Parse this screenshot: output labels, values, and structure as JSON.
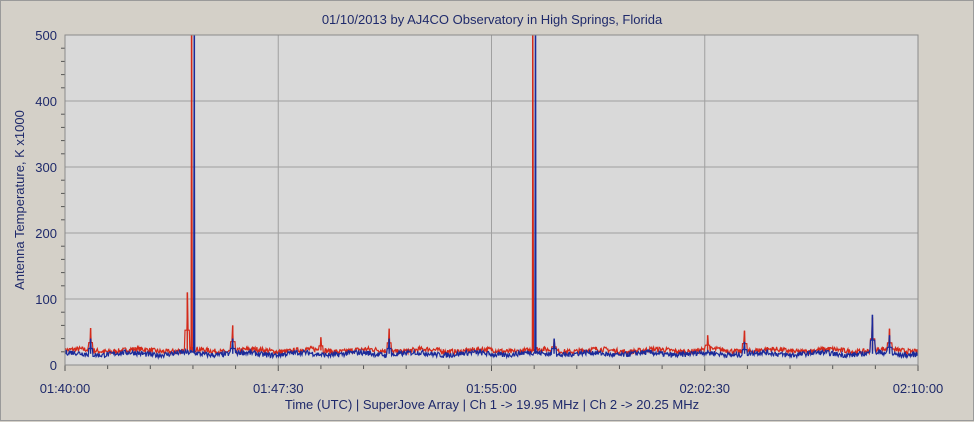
{
  "chart_data": {
    "type": "line",
    "title": "01/10/2013  by  AJ4CO Observatory  in  High Springs, Florida",
    "xlabel": "Time (UTC)  |  SuperJove Array  |  Ch 1 -> 19.95 MHz  |  Ch 2 -> 20.25 MHz",
    "ylabel": "Antenna Temperature, K x1000",
    "x_range_minutes": [
      0,
      30
    ],
    "x_ticks": [
      {
        "minute": 0,
        "label": "01:40:00"
      },
      {
        "minute": 7.5,
        "label": "01:47:30"
      },
      {
        "minute": 15,
        "label": "01:55:00"
      },
      {
        "minute": 22.5,
        "label": "02:02:30"
      },
      {
        "minute": 30,
        "label": "02:10:00"
      }
    ],
    "ylim": [
      0,
      500
    ],
    "y_ticks": [
      0,
      100,
      200,
      300,
      400,
      500
    ],
    "grid": true,
    "series": [
      {
        "name": "Ch 1",
        "color": "#d42a1a",
        "baseline": 22,
        "spikes": [
          {
            "minute": 0.9,
            "value": 56
          },
          {
            "minute": 4.3,
            "value": 110
          },
          {
            "minute": 4.45,
            "value": 500
          },
          {
            "minute": 5.9,
            "value": 60
          },
          {
            "minute": 9.0,
            "value": 42
          },
          {
            "minute": 11.4,
            "value": 55
          },
          {
            "minute": 16.45,
            "value": 500
          },
          {
            "minute": 17.2,
            "value": 38
          },
          {
            "minute": 22.6,
            "value": 45
          },
          {
            "minute": 23.9,
            "value": 52
          },
          {
            "minute": 28.4,
            "value": 72
          },
          {
            "minute": 29.0,
            "value": 55
          }
        ]
      },
      {
        "name": "Ch 2",
        "color": "#1a2a9a",
        "baseline": 17,
        "spikes": [
          {
            "minute": 0.9,
            "value": 40
          },
          {
            "minute": 4.55,
            "value": 500
          },
          {
            "minute": 5.9,
            "value": 40
          },
          {
            "minute": 11.4,
            "value": 40
          },
          {
            "minute": 16.55,
            "value": 500
          },
          {
            "minute": 17.2,
            "value": 40
          },
          {
            "minute": 23.9,
            "value": 35
          },
          {
            "minute": 28.4,
            "value": 76
          },
          {
            "minute": 29.0,
            "value": 45
          }
        ]
      }
    ]
  },
  "colors": {
    "background": "#d4d0c8",
    "plot_background": "#d9d9d9",
    "grid": "#a0a0a0",
    "text": "#1f2a6b"
  }
}
